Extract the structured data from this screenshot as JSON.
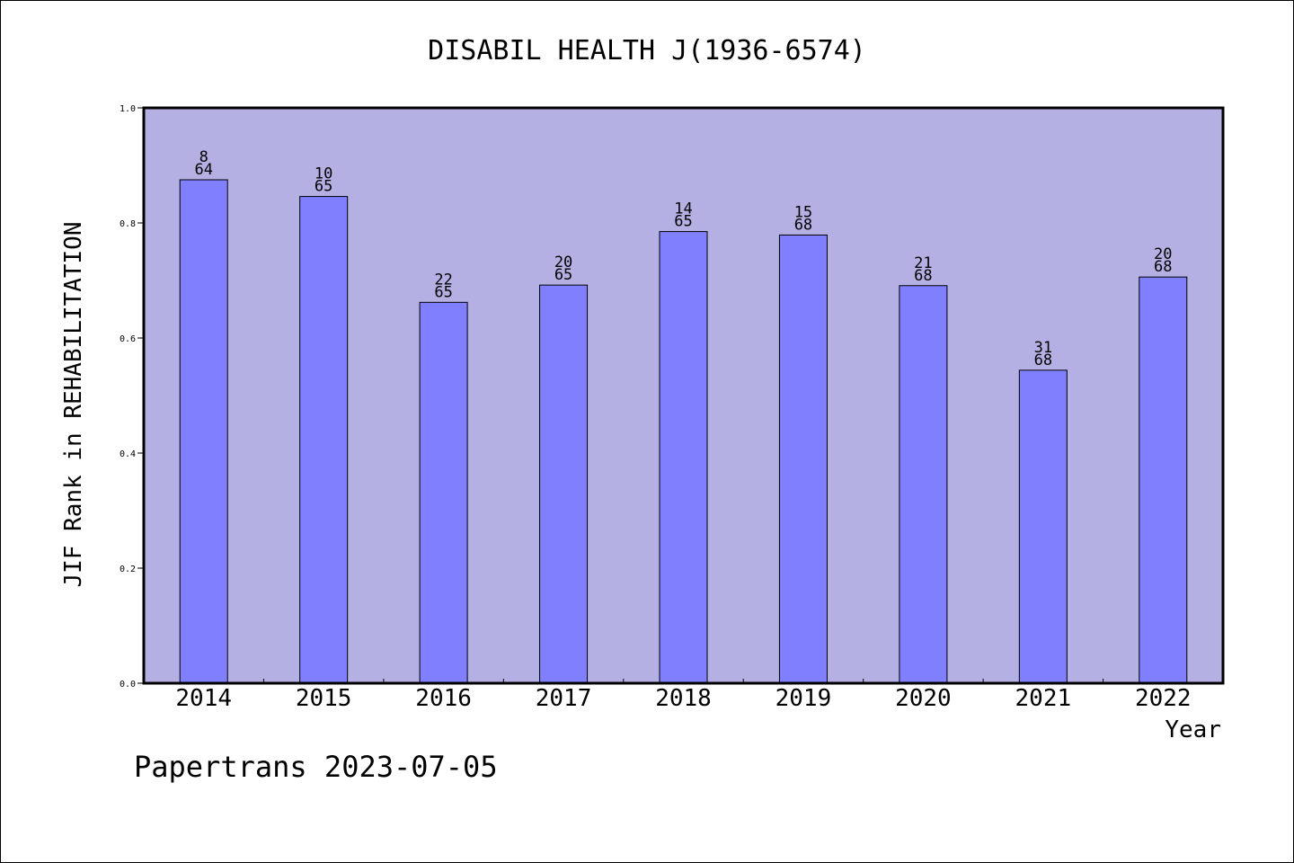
{
  "footer": {
    "credit": "Papertrans 2023-07-05"
  },
  "chart_data": {
    "type": "bar",
    "title": "DISABIL HEALTH J(1936-6574)",
    "xlabel": "Year",
    "ylabel": "JIF Rank in REHABILITATION",
    "ylim": [
      0,
      1.0
    ],
    "yticks": [
      "0.0",
      "0.2",
      "0.4",
      "0.6",
      "0.8",
      "1.0"
    ],
    "categories": [
      "2014",
      "2015",
      "2016",
      "2017",
      "2018",
      "2019",
      "2020",
      "2021",
      "2022"
    ],
    "values": [
      0.875,
      0.846,
      0.662,
      0.692,
      0.785,
      0.779,
      0.691,
      0.544,
      0.706
    ],
    "rank_labels": [
      {
        "rank": "8",
        "total": "64"
      },
      {
        "rank": "10",
        "total": "65"
      },
      {
        "rank": "22",
        "total": "65"
      },
      {
        "rank": "20",
        "total": "65"
      },
      {
        "rank": "14",
        "total": "65"
      },
      {
        "rank": "15",
        "total": "68"
      },
      {
        "rank": "21",
        "total": "68"
      },
      {
        "rank": "31",
        "total": "68"
      },
      {
        "rank": "20",
        "total": "68"
      }
    ],
    "grid": false,
    "colors": {
      "plot_background": "#b5b0e3",
      "bar_fill": "#8080ff",
      "bar_stroke": "#000000"
    }
  }
}
